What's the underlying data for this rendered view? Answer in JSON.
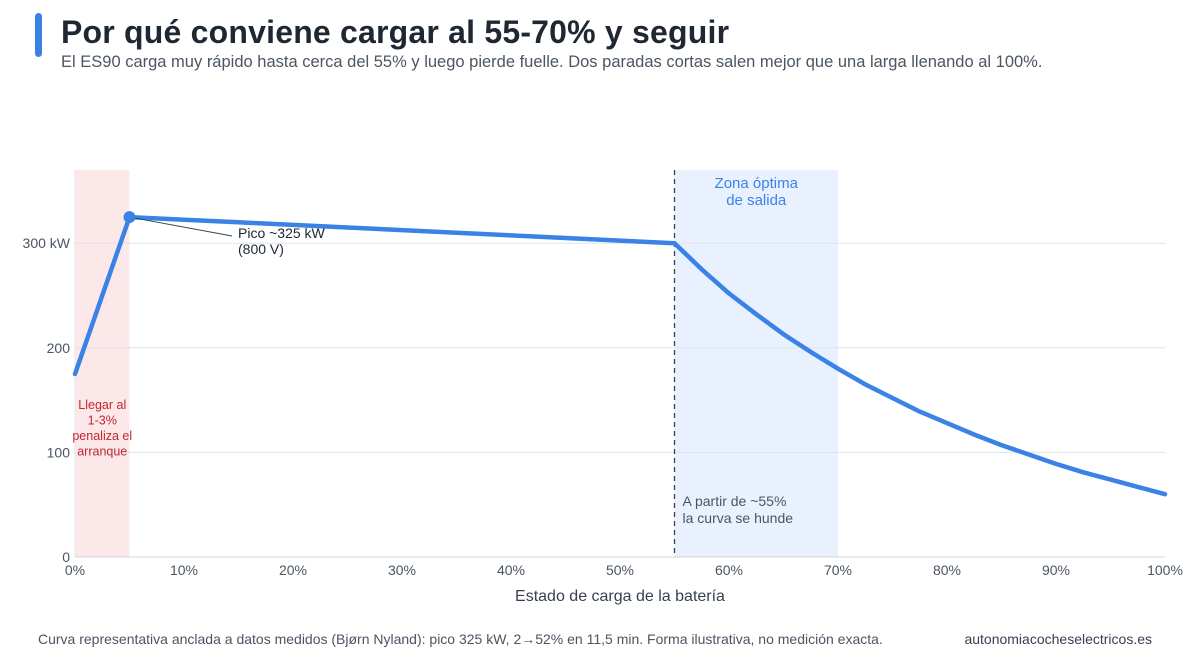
{
  "header": {
    "title": "Por qué conviene cargar al 55-70% y seguir",
    "subtitle": "El ES90 carga muy rápido hasta cerca del 55% y luego pierde fuelle. Dos paradas cortas salen mejor que una larga llenando al 100%."
  },
  "chart_data": {
    "type": "line",
    "xlabel": "Estado de carga de la batería",
    "ylabel": "",
    "xlim": [
      0,
      100
    ],
    "ylim": [
      0,
      370
    ],
    "x_ticks": [
      "0%",
      "10%",
      "20%",
      "30%",
      "40%",
      "50%",
      "60%",
      "70%",
      "80%",
      "90%",
      "100%"
    ],
    "y_ticks": [
      "0",
      "100",
      "200",
      "300 kW"
    ],
    "grid": "horizontal",
    "series": [
      {
        "color": "#3b82e6",
        "x": [
          0,
          5,
          10,
          15,
          20,
          25,
          30,
          35,
          40,
          45,
          50,
          55,
          57.5,
          60,
          62.5,
          65,
          67.5,
          70,
          72.5,
          75,
          77.5,
          80,
          82.5,
          85,
          87.5,
          90,
          92.5,
          95,
          97.5,
          100
        ],
        "y": [
          175,
          325,
          322.5,
          320,
          317.5,
          315,
          312.5,
          310,
          307.5,
          305,
          302.5,
          300,
          275,
          252,
          232,
          213,
          196,
          180,
          165,
          152,
          139,
          128,
          117,
          107,
          98,
          89,
          81,
          74,
          67,
          60
        ]
      }
    ],
    "peak": {
      "x": 5,
      "y": 325,
      "label_lines": [
        "Pico ~325 kW",
        "(800 V)"
      ]
    },
    "regions": [
      {
        "x0": 0,
        "x1": 5,
        "color": "#fce8e8",
        "label_lines": [
          "Llegar al",
          "1-3%",
          "penaliza el",
          "arranque"
        ],
        "label_color": "#c0282d"
      },
      {
        "x0": 55,
        "x1": 70,
        "color": "#e8f1fd",
        "label_lines": [
          "Zona óptima",
          "de salida"
        ],
        "label_color": "#3b82e6"
      }
    ],
    "marker_line": {
      "x": 55,
      "label_lines": [
        "A partir de ~55%",
        "la curva se hunde"
      ]
    }
  },
  "footer": {
    "note": "Curva representativa anclada a datos medidos (Bjørn Nyland): pico 325 kW, 2→52% en 11,5 min. Forma ilustrativa, no medición exacta.",
    "site": "autonomiacocheselectricos.es"
  }
}
